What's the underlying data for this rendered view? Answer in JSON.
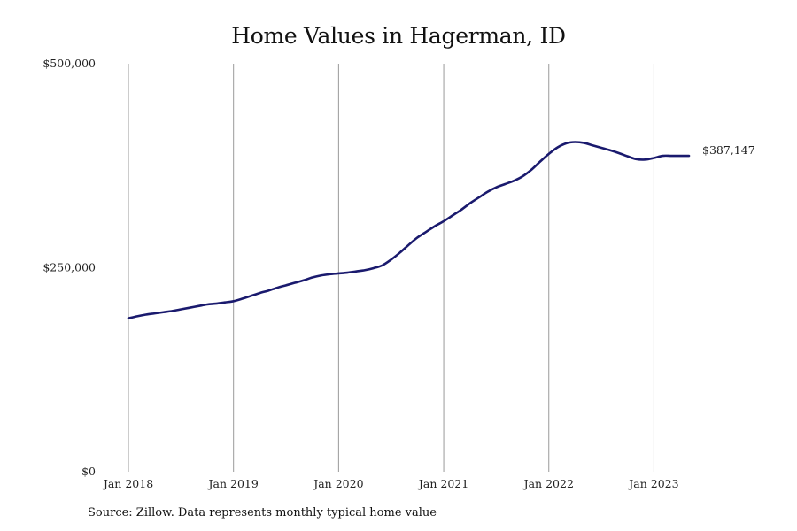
{
  "chart_data": {
    "type": "line",
    "title": "Home Values in Hagerman, ID",
    "source": "Source: Zillow. Data represents monthly typical home value",
    "x_ticks": [
      "Jan 2018",
      "Jan 2019",
      "Jan 2020",
      "Jan 2021",
      "Jan 2022",
      "Jan 2023"
    ],
    "y_ticks": [
      {
        "value": 0,
        "label": "$0"
      },
      {
        "value": 250000,
        "label": "$250,000"
      },
      {
        "value": 500000,
        "label": "$500,000"
      }
    ],
    "ylim": [
      0,
      500000
    ],
    "xlim": [
      "2018-01",
      "2023-05"
    ],
    "grid": "vertical",
    "line_color": "#1a1a6e",
    "end_label": "$387,147",
    "series": [
      {
        "name": "",
        "x": [
          "2018-01",
          "2018-02",
          "2018-03",
          "2018-04",
          "2018-05",
          "2018-06",
          "2018-07",
          "2018-08",
          "2018-09",
          "2018-10",
          "2018-11",
          "2018-12",
          "2019-01",
          "2019-02",
          "2019-03",
          "2019-04",
          "2019-05",
          "2019-06",
          "2019-07",
          "2019-08",
          "2019-09",
          "2019-10",
          "2019-11",
          "2019-12",
          "2020-01",
          "2020-02",
          "2020-03",
          "2020-04",
          "2020-05",
          "2020-06",
          "2020-07",
          "2020-08",
          "2020-09",
          "2020-10",
          "2020-11",
          "2020-12",
          "2021-01",
          "2021-02",
          "2021-03",
          "2021-04",
          "2021-05",
          "2021-06",
          "2021-07",
          "2021-08",
          "2021-09",
          "2021-10",
          "2021-11",
          "2021-12",
          "2022-01",
          "2022-02",
          "2022-03",
          "2022-04",
          "2022-05",
          "2022-06",
          "2022-07",
          "2022-08",
          "2022-09",
          "2022-10",
          "2022-11",
          "2022-12",
          "2023-01",
          "2023-02",
          "2023-03",
          "2023-04",
          "2023-05"
        ],
        "values": [
          188000,
          190500,
          192500,
          194000,
          195500,
          197000,
          199000,
          201000,
          203000,
          205000,
          206000,
          207500,
          209000,
          212000,
          215500,
          219000,
          222000,
          225500,
          228500,
          231500,
          234500,
          238000,
          240500,
          242000,
          243000,
          244000,
          245500,
          247000,
          249500,
          253000,
          260000,
          268500,
          278000,
          287000,
          294000,
          301000,
          307000,
          314000,
          321000,
          329000,
          336000,
          343000,
          348500,
          352500,
          356500,
          362000,
          370000,
          380000,
          389500,
          397500,
          402500,
          404000,
          403000,
          400000,
          397000,
          394000,
          390500,
          386500,
          383000,
          382500,
          384500,
          387147,
          387147,
          387147,
          387147
        ]
      }
    ]
  }
}
